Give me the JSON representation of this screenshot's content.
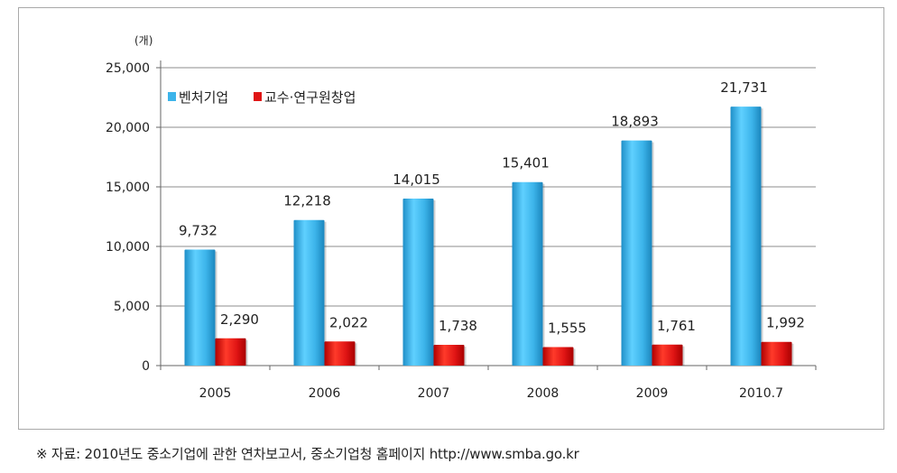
{
  "chart_data": {
    "type": "bar",
    "unit_label": "(개)",
    "categories": [
      "2005",
      "2006",
      "2007",
      "2008",
      "2009",
      "2010.7"
    ],
    "series": [
      {
        "name": "벤처기업",
        "color": "#3cb4ea",
        "values": [
          9732,
          12218,
          14015,
          15401,
          18893,
          21731
        ],
        "labels": [
          "9,732",
          "12,218",
          "14,015",
          "15,401",
          "18,893",
          "21,731"
        ]
      },
      {
        "name": "교수·연구원창업",
        "color": "#e01515",
        "values": [
          2290,
          2022,
          1738,
          1555,
          1761,
          1992
        ],
        "labels": [
          "2,290",
          "2,022",
          "1,738",
          "1,555",
          "1,761",
          "1,992"
        ]
      }
    ],
    "ylim": [
      0,
      25000
    ],
    "yticks": [
      0,
      5000,
      10000,
      15000,
      20000,
      25000
    ],
    "ytick_labels": [
      "0",
      "5,000",
      "10,000",
      "15,000",
      "20,000",
      "25,000"
    ],
    "grid": true,
    "legend_position": "top-left"
  },
  "source_note": "※ 자료: 2010년도 중소기업에 관한 연차보고서, 중소기업청 홈페이지 http://www.smba.go.kr"
}
